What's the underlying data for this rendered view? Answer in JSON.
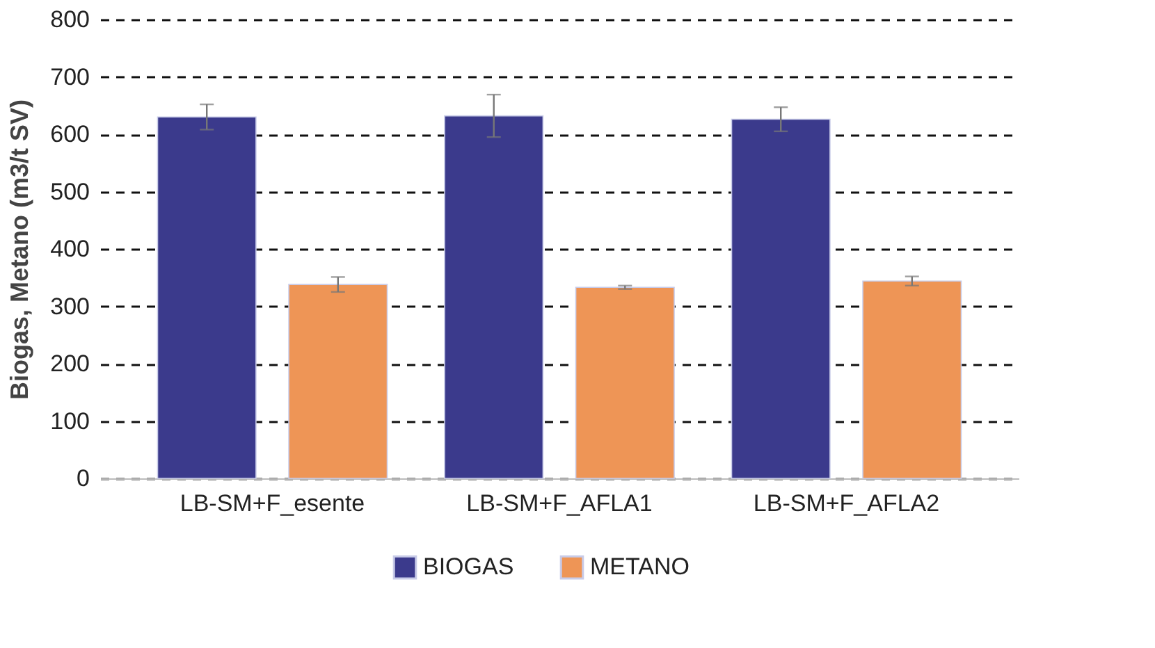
{
  "chart_data": {
    "type": "bar",
    "ylabel": "Biogas, Metano (m3/t SV)",
    "categories": [
      "LB-SM+F_esente",
      "LB-SM+F_AFLA1",
      "LB-SM+F_AFLA2"
    ],
    "series": [
      {
        "name": "BIOGAS",
        "color": "#3b3a8c",
        "values": [
          630,
          632,
          626
        ],
        "errors": [
          22,
          37,
          21
        ]
      },
      {
        "name": "METANO",
        "color": "#ee9556",
        "values": [
          338,
          333,
          344
        ],
        "errors": [
          13,
          3,
          8
        ]
      }
    ],
    "ylim": [
      0,
      800
    ],
    "yticks": [
      0,
      100,
      200,
      300,
      400,
      500,
      600,
      700,
      800
    ],
    "grid": "y",
    "legend": "bottom"
  }
}
